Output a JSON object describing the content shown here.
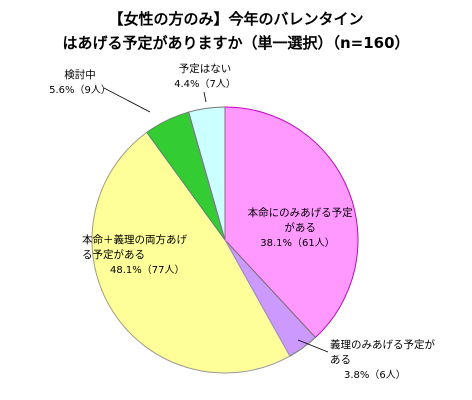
{
  "chart_data": {
    "type": "pie",
    "title": [
      "【女性の方のみ】今年のバレンタイン",
      "はあげる予定がありますか（単一選択）（n=160）"
    ],
    "categories": [
      "本命にのみあげる予定がある",
      "義理のみあげる予定がある",
      "本命＋義理の両方あげる予定がある",
      "検討中",
      "予定はない"
    ],
    "values": [
      38.1,
      3.8,
      48.1,
      5.6,
      4.4
    ],
    "value_labels": [
      "38.1%（61人）",
      "3.8%（6人）",
      "48.1%（77人）",
      "5.6%（9人）",
      "4.4%（7人）"
    ],
    "colors": [
      "#ff99ff",
      "#cc99ff",
      "#ffff99",
      "#33cc33",
      "#ccffff"
    ]
  }
}
